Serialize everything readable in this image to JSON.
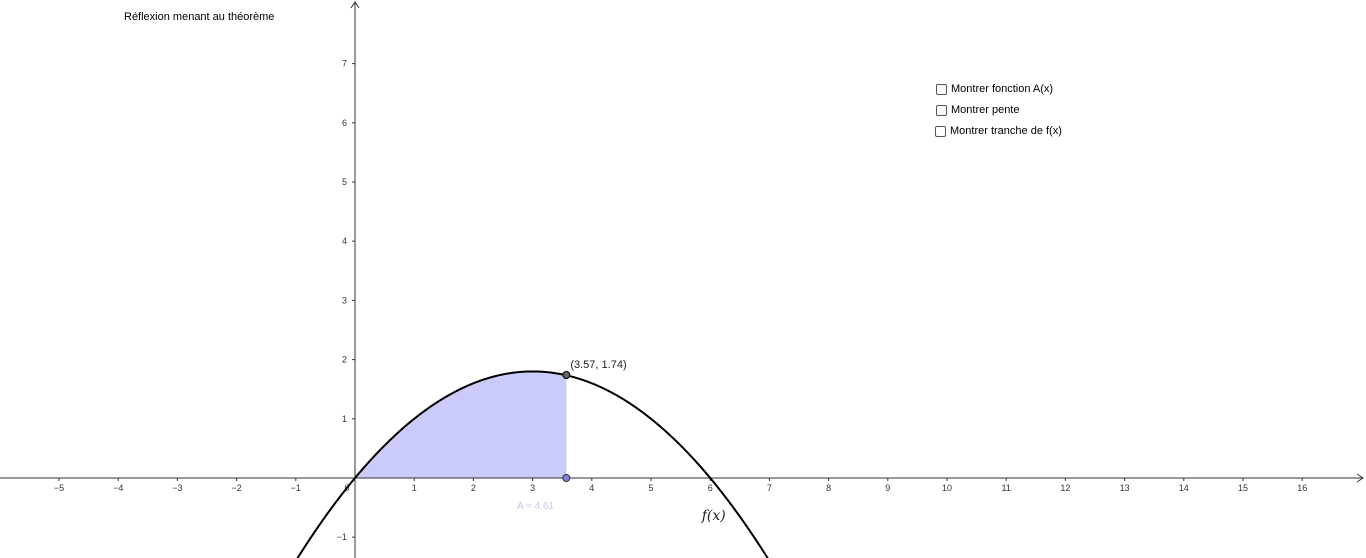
{
  "title": "Réflexion menant au théorème",
  "checkboxes": [
    {
      "label": "Montrer fonction A(x)",
      "checked": false
    },
    {
      "label": "Montrer pente",
      "checked": false
    },
    {
      "label": "Montrer tranche de f(x)",
      "checked": false
    }
  ],
  "colors": {
    "axis": "#333333",
    "curve": "#000000",
    "area_fill": "#cbcbfa",
    "point": "#666666",
    "foot_point": "#8080e0"
  },
  "chart_data": {
    "type": "area",
    "function": {
      "name": "f(x)",
      "label": "f(x)",
      "a": -0.2,
      "h": 3,
      "k": 1.8
    },
    "x_ticks": [
      -5,
      -4,
      -3,
      -2,
      -1,
      0,
      1,
      2,
      3,
      4,
      5,
      6,
      7,
      8,
      9,
      10,
      11,
      12,
      13,
      14,
      15,
      16
    ],
    "y_ticks": [
      -1,
      1,
      2,
      3,
      4,
      5,
      6,
      7
    ],
    "x_tick_labels": [
      "−5",
      "−4",
      "−3",
      "−2",
      "−1",
      "0",
      "1",
      "2",
      "3",
      "4",
      "5",
      "6",
      "7",
      "8",
      "9",
      "10",
      "11",
      "12",
      "13",
      "14",
      "15",
      "16"
    ],
    "y_tick_labels": [
      "−1",
      "1",
      "2",
      "3",
      "4",
      "5",
      "6",
      "7"
    ],
    "xlim": [
      -6,
      17.1
    ],
    "ylim": [
      -1.3,
      8
    ],
    "shaded_interval": [
      0,
      3.57
    ],
    "point": {
      "x": 3.57,
      "y": 1.74,
      "label": "(3.57, 1.74)"
    },
    "area_label": "A = 4.61",
    "grid": false
  }
}
